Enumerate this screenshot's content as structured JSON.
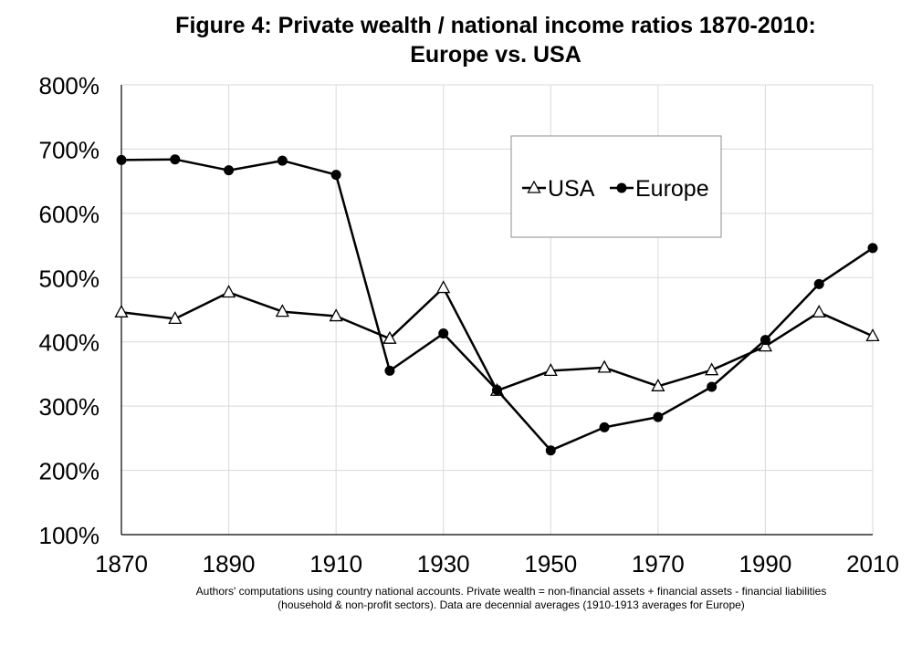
{
  "chart_data": {
    "type": "line",
    "title_lines": [
      "Figure 4: Private wealth / national income ratios 1870-2010:",
      "Europe vs. USA"
    ],
    "xlabel": "",
    "ylabel": "",
    "x": [
      1870,
      1880,
      1890,
      1900,
      1910,
      1920,
      1930,
      1940,
      1950,
      1960,
      1970,
      1980,
      1990,
      2000,
      2010
    ],
    "x_ticks": [
      "1870",
      "1890",
      "1910",
      "1930",
      "1950",
      "1970",
      "1990",
      "2010"
    ],
    "xlim": [
      1870,
      2010
    ],
    "y_ticks": [
      "100%",
      "200%",
      "300%",
      "400%",
      "500%",
      "600%",
      "700%",
      "800%"
    ],
    "ylim": [
      100,
      800
    ],
    "grid": true,
    "legend_position": "top-right",
    "series": [
      {
        "name": "USA",
        "marker": "triangle-open",
        "values": [
          446,
          436,
          477,
          447,
          440,
          405,
          484,
          324,
          355,
          360,
          331,
          356,
          393,
          446,
          409
        ]
      },
      {
        "name": "Europe",
        "marker": "circle-filled",
        "values": [
          683,
          684,
          667,
          682,
          660,
          355,
          413,
          325,
          231,
          267,
          283,
          330,
          403,
          490,
          546
        ]
      }
    ],
    "note_lines": [
      "Authors' computations using country national accounts. Private wealth = non-financial assets + financial assets - financial liabilities",
      "(household & non-profit sectors). Data are decennial averages (1910-1913 averages for Europe)"
    ],
    "colors": {
      "line": "#000000",
      "grid": "#d9d9d9",
      "axis": "#000000"
    }
  }
}
